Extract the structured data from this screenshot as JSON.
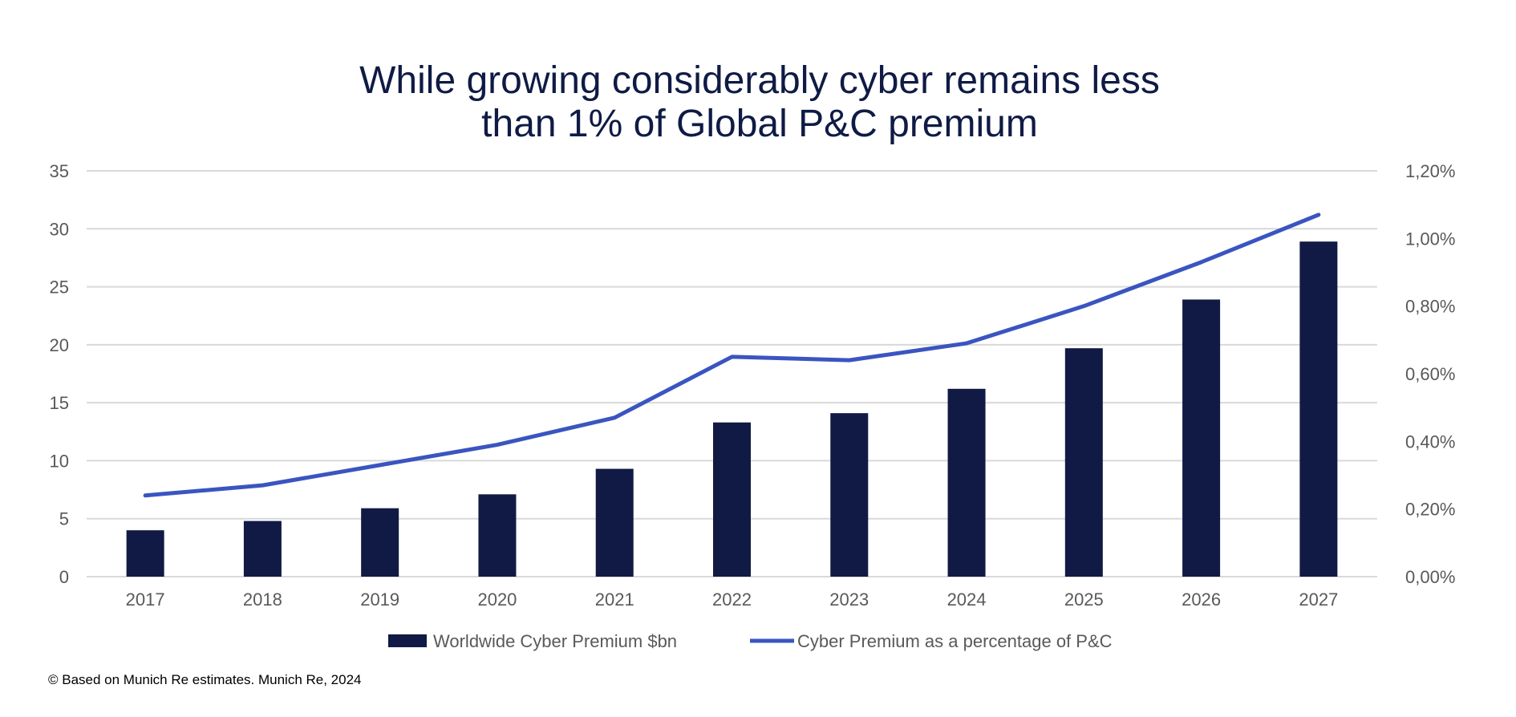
{
  "chart_data": {
    "type": "bar+line",
    "title": [
      "While growing considerably cyber remains less",
      "than 1% of Global P&C premium"
    ],
    "categories": [
      "2017",
      "2018",
      "2019",
      "2020",
      "2021",
      "2022",
      "2023",
      "2024",
      "2025",
      "2026",
      "2027"
    ],
    "series": [
      {
        "name": "Worldwide Cyber Premium $bn",
        "type": "bar",
        "axis": "left",
        "color": "#101a45",
        "values": [
          4.0,
          4.8,
          5.9,
          7.1,
          9.3,
          13.3,
          14.1,
          16.2,
          19.7,
          23.9,
          28.9
        ]
      },
      {
        "name": "Cyber Premium as a percentage of P&C",
        "type": "line",
        "axis": "right",
        "color": "#3a55c0",
        "values": [
          0.24,
          0.27,
          0.33,
          0.39,
          0.47,
          0.65,
          0.64,
          0.69,
          0.8,
          0.93,
          1.07
        ]
      }
    ],
    "y_left": {
      "lim": [
        0,
        35
      ],
      "ticks": [
        "0",
        "5",
        "10",
        "15",
        "20",
        "25",
        "30",
        "35"
      ]
    },
    "y_right": {
      "lim": [
        0,
        1.2
      ],
      "ticks": [
        "0,00%",
        "0,20%",
        "0,40%",
        "0,60%",
        "0,80%",
        "1,00%",
        "1,20%"
      ]
    },
    "grid": true,
    "legend": "bottom"
  },
  "footer": "© Based on Munich Re estimates. Munich Re, 2024"
}
